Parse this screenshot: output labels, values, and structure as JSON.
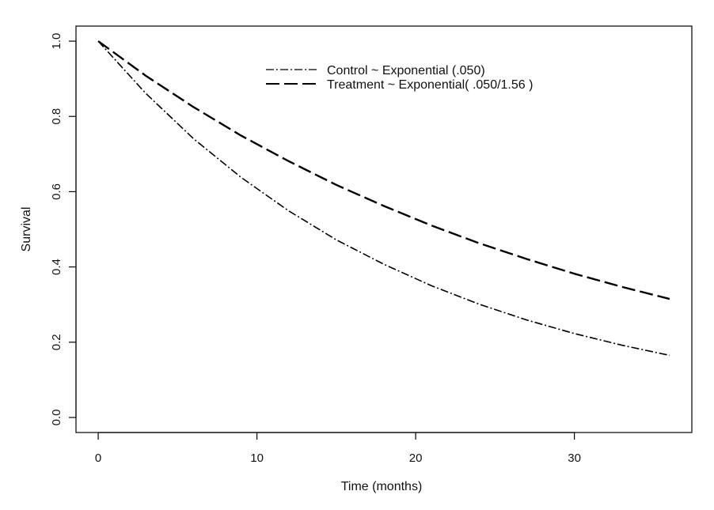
{
  "chart_data": {
    "type": "line",
    "title": "",
    "xlabel": "Time (months)",
    "ylabel": "Survival",
    "xlim": [
      -1.4,
      37.4
    ],
    "ylim": [
      -0.04,
      1.04
    ],
    "x_ticks": [
      0,
      10,
      20,
      30
    ],
    "x_tick_labels": [
      "0",
      "10",
      "20",
      "30"
    ],
    "y_ticks": [
      0.0,
      0.2,
      0.4,
      0.6,
      0.8,
      1.0
    ],
    "y_tick_labels": [
      "0.0",
      "0.2",
      "0.4",
      "0.6",
      "0.8",
      "1.0"
    ],
    "grid": false,
    "legend_position": "top-center",
    "x": [
      0,
      3,
      6,
      9,
      12,
      15,
      18,
      21,
      24,
      27,
      30,
      33,
      36
    ],
    "series": [
      {
        "name": "Control ~ Exponential (.050)",
        "line_style": "dash-dot",
        "color": "#000000",
        "values": [
          1.0,
          0.861,
          0.741,
          0.638,
          0.549,
          0.472,
          0.407,
          0.35,
          0.301,
          0.259,
          0.223,
          0.192,
          0.165
        ]
      },
      {
        "name": "Treatment ~ Exponential( .050/1.56 )",
        "line_style": "long-dash",
        "color": "#000000",
        "values": [
          1.0,
          0.908,
          0.825,
          0.749,
          0.681,
          0.618,
          0.562,
          0.51,
          0.463,
          0.421,
          0.382,
          0.347,
          0.315
        ]
      }
    ]
  }
}
